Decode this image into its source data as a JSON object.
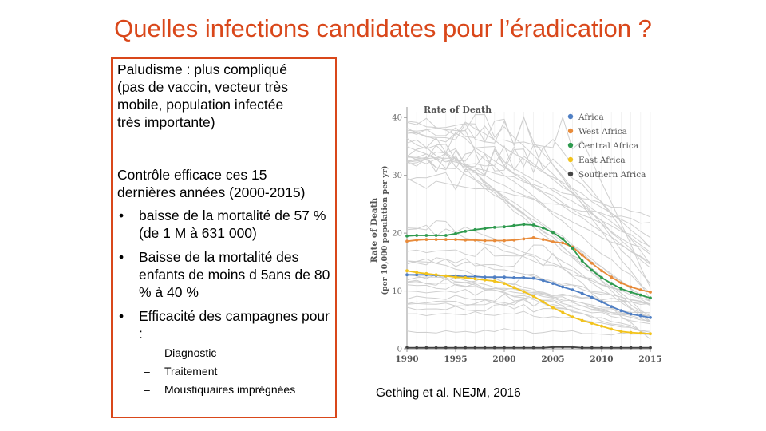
{
  "slide": {
    "title": "Quelles infections candidates pour l’éradication ?",
    "para1": "Paludisme  : plus compliqué\n(pas de vaccin, vecteur très\nmobile, population infectée\ntrès importante)",
    "para2": "Contrôle efficace ces 15\ndernières années (2000-2015)",
    "bullets": [
      {
        "symbol": "•",
        "text": "baisse de la mortalité  de 57 % (de 1 M à 631 000)"
      },
      {
        "symbol": "•",
        "text": "Baisse de la mortalité des enfants de moins d 5ans de 80 % à 40 %"
      },
      {
        "symbol": "•",
        "text": "Efficacité des campagnes pour :"
      }
    ],
    "sub_bullets": [
      {
        "symbol": "–",
        "text": "Diagnostic"
      },
      {
        "symbol": "–",
        "text": "Traitement"
      },
      {
        "symbol": "–",
        "text": "Moustiquaires imprégnées"
      }
    ],
    "source": "Gething et al. NEJM, 2016",
    "accent_color": "#d9471a"
  },
  "chart_data": {
    "type": "line",
    "title": "Rate of Death",
    "ylabel": "Rate of Death\n(per 10,000 population per yr)",
    "xlabel": "",
    "x": [
      1990,
      1991,
      1992,
      1993,
      1994,
      1995,
      1996,
      1997,
      1998,
      1999,
      2000,
      2001,
      2002,
      2003,
      2004,
      2005,
      2006,
      2007,
      2008,
      2009,
      2010,
      2011,
      2012,
      2013,
      2014,
      2015
    ],
    "xticks": [
      "1990",
      "1995",
      "2000",
      "2005",
      "2010",
      "2015"
    ],
    "yticks": [
      "0",
      "10",
      "20",
      "30",
      "40"
    ],
    "ylim": [
      0,
      41
    ],
    "grid": true,
    "legend_position": "top-right",
    "series": [
      {
        "name": "Africa",
        "color": "#4f7fc4",
        "values": [
          12.8,
          12.8,
          12.8,
          12.7,
          12.6,
          12.6,
          12.5,
          12.5,
          12.4,
          12.4,
          12.4,
          12.3,
          12.3,
          12.2,
          11.8,
          11.3,
          10.7,
          10.2,
          9.6,
          8.9,
          8.1,
          7.3,
          6.6,
          6.0,
          5.7,
          5.4
        ]
      },
      {
        "name": "West Africa",
        "color": "#e88b3a",
        "values": [
          18.6,
          18.8,
          18.9,
          18.9,
          18.9,
          18.9,
          18.8,
          18.8,
          18.7,
          18.7,
          18.7,
          18.8,
          19.0,
          19.2,
          18.9,
          18.5,
          18.3,
          17.6,
          16.2,
          14.8,
          13.5,
          12.4,
          11.4,
          10.7,
          10.2,
          9.8
        ]
      },
      {
        "name": "Central Africa",
        "color": "#2e9a4e",
        "values": [
          19.5,
          19.6,
          19.6,
          19.6,
          19.6,
          19.9,
          20.3,
          20.6,
          20.8,
          21.0,
          21.1,
          21.3,
          21.5,
          21.4,
          20.9,
          20.1,
          19.0,
          17.4,
          15.2,
          13.6,
          12.3,
          11.3,
          10.4,
          9.8,
          9.3,
          8.8
        ]
      },
      {
        "name": "East Africa",
        "color": "#f2c31d",
        "values": [
          13.5,
          13.2,
          13.0,
          12.8,
          12.6,
          12.4,
          12.3,
          12.1,
          11.9,
          11.7,
          11.3,
          10.6,
          9.9,
          9.1,
          8.1,
          7.1,
          6.3,
          5.5,
          4.9,
          4.4,
          3.9,
          3.4,
          3.0,
          2.8,
          2.7,
          2.6
        ]
      },
      {
        "name": "Southern Africa",
        "color": "#444444",
        "values": [
          0.2,
          0.2,
          0.2,
          0.2,
          0.2,
          0.2,
          0.2,
          0.2,
          0.2,
          0.2,
          0.2,
          0.2,
          0.2,
          0.2,
          0.2,
          0.3,
          0.3,
          0.3,
          0.2,
          0.2,
          0.2,
          0.2,
          0.2,
          0.2,
          0.2,
          0.2
        ]
      }
    ],
    "background_series_color": "#cfcfcf"
  }
}
